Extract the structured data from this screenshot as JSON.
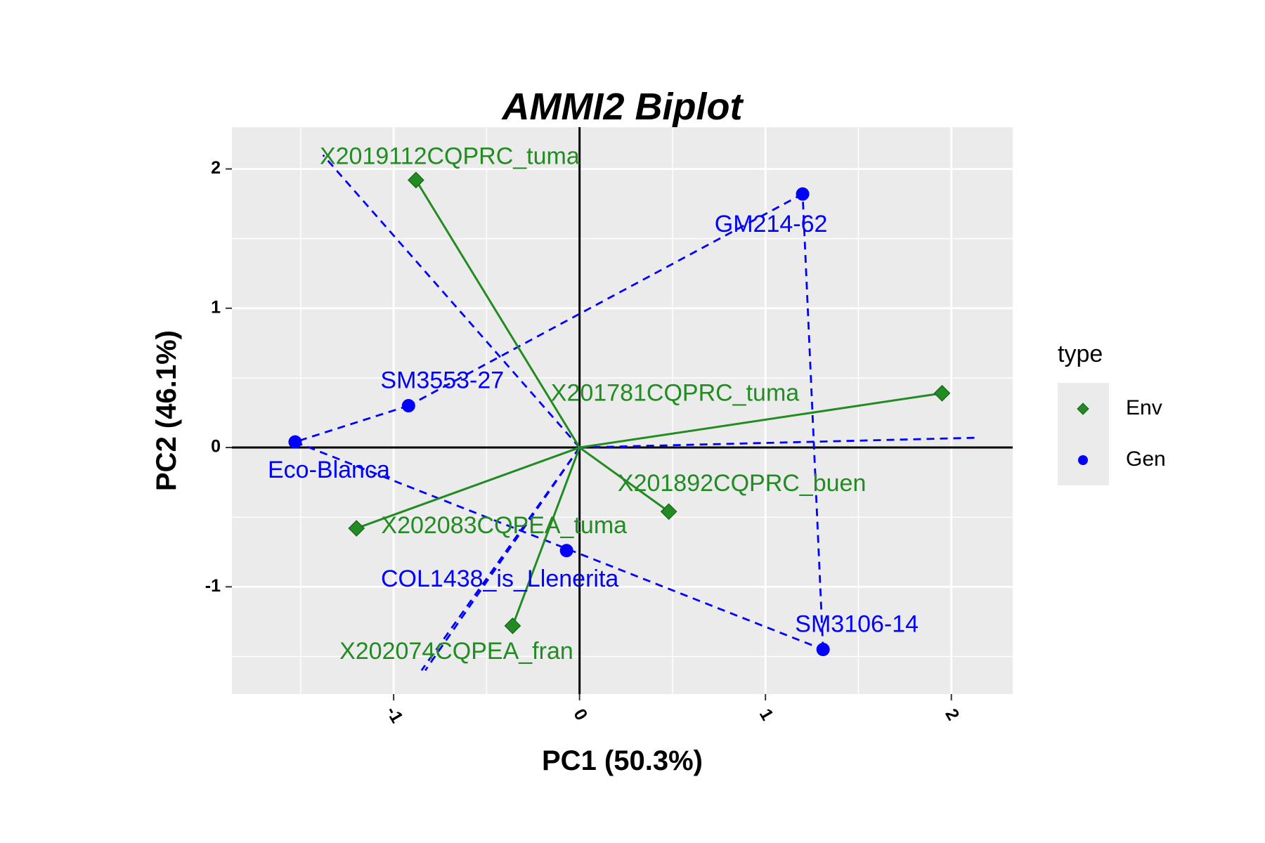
{
  "chart_data": {
    "type": "scatter",
    "title": "AMMI2 Biplot",
    "xlabel": "PC1 (50.3%)",
    "ylabel": "PC2 (46.1%)",
    "xlim": [
      -1.87,
      2.33
    ],
    "ylim": [
      -1.77,
      2.3
    ],
    "xticks": [
      -1,
      0,
      1,
      2
    ],
    "xtick_labels": [
      "-1",
      "0",
      "1",
      "2"
    ],
    "yticks": [
      -1,
      0,
      1,
      2
    ],
    "ytick_labels": [
      "-1",
      "0",
      "1",
      "2"
    ],
    "grid": true,
    "reference_lines": {
      "x": 0,
      "y": 0
    },
    "legend": {
      "title": "type",
      "position": "right",
      "entries": [
        {
          "label": "Env",
          "color": "#228B22",
          "shape": "diamond"
        },
        {
          "label": "Gen",
          "color": "#0000FF",
          "shape": "circle"
        }
      ]
    },
    "series": [
      {
        "name": "Env",
        "color": "#228B22",
        "shape": "diamond",
        "points": [
          {
            "label": "X2019112CQPRC_tuma",
            "x": -0.88,
            "y": 1.92
          },
          {
            "label": "X201781CQPRC_tuma",
            "x": 1.95,
            "y": 0.39
          },
          {
            "label": "X201892CQPRC_buen",
            "x": 0.48,
            "y": -0.46
          },
          {
            "label": "X202083CQPEA_tuma",
            "x": -1.2,
            "y": -0.58
          },
          {
            "label": "X202074CQPEA_fran",
            "x": -0.36,
            "y": -1.28
          }
        ]
      },
      {
        "name": "Gen",
        "color": "#0000FF",
        "shape": "circle",
        "points": [
          {
            "label": "GM214-62",
            "x": 1.2,
            "y": 1.82
          },
          {
            "label": "SM3553-27",
            "x": -0.92,
            "y": 0.3
          },
          {
            "label": "Eco-Blanca",
            "x": -1.53,
            "y": 0.04
          },
          {
            "label": "COL1438_is_Llenerita",
            "x": -0.07,
            "y": -0.74
          },
          {
            "label": "SM3106-14",
            "x": 1.31,
            "y": -1.45
          }
        ]
      }
    ],
    "polygon_lines": [
      {
        "from": "GM214-62",
        "to": "SM3553-27"
      },
      {
        "from": "SM3553-27",
        "to": "Eco-Blanca"
      },
      {
        "from": "Eco-Blanca",
        "to": "SM3106-14"
      },
      {
        "from": "SM3106-14",
        "to": "GM214-62"
      }
    ],
    "sector_rays": [
      {
        "x": -1.38,
        "y": 2.1
      },
      {
        "x": 2.13,
        "y": 0.07
      },
      {
        "x": -0.85,
        "y": -1.6
      },
      {
        "x": -0.83,
        "y": -1.6
      }
    ]
  }
}
